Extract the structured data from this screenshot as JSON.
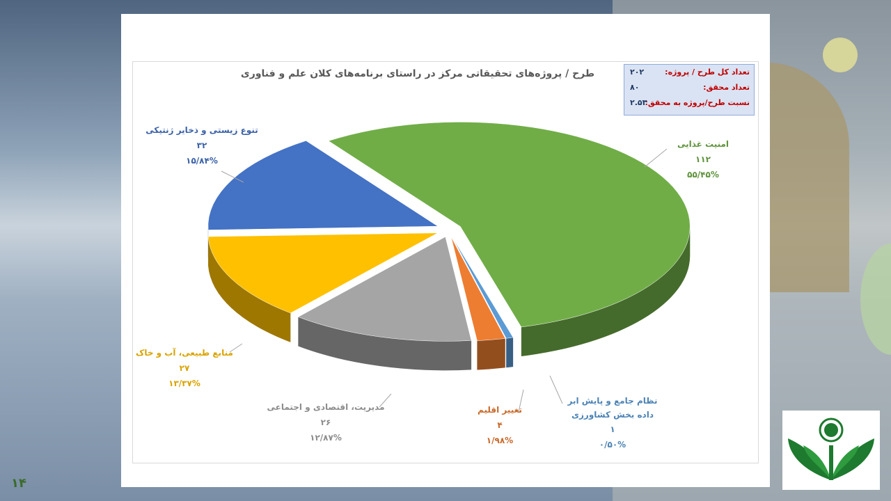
{
  "slide_number": "۱۴",
  "chart_data": {
    "type": "pie",
    "title": "طرح / پروژه‌های تحقیقاتی مرکز در راستای برنامه‌های کلان علم و فناوری",
    "info": [
      {
        "label": "تعداد کل طرح / پروژه:",
        "value": "۲۰۲"
      },
      {
        "label": "تعداد محقق:",
        "value": "۸۰"
      },
      {
        "label": "نسبت طرح/پروژه به محقق:",
        "value": "۲.۵۳"
      }
    ],
    "categories": [
      "امنیت غذایی",
      "نظام جامع و پایش ابر داده بخش کشاورزی",
      "تغییر اقلیم",
      "مدیریت، اقتصادی و اجتماعی",
      "منابع طبیعی، آب و خاک",
      "تنوع زیستی و ذخایر ژنتیکی"
    ],
    "values": [
      112,
      1,
      4,
      26,
      27,
      32
    ],
    "value_labels": [
      "۱۱۲",
      "۱",
      "۴",
      "۲۶",
      "۲۷",
      "۳۲"
    ],
    "percent_labels": [
      "۵۵/۴۵%",
      "۰/۵۰%",
      "۱/۹۸%",
      "۱۲/۸۷%",
      "۱۳/۳۷%",
      "۱۵/۸۴%"
    ],
    "colors": [
      "#70ad47",
      "#5b9bd5",
      "#ed7d31",
      "#a5a5a5",
      "#ffc000",
      "#4472c4"
    ]
  }
}
